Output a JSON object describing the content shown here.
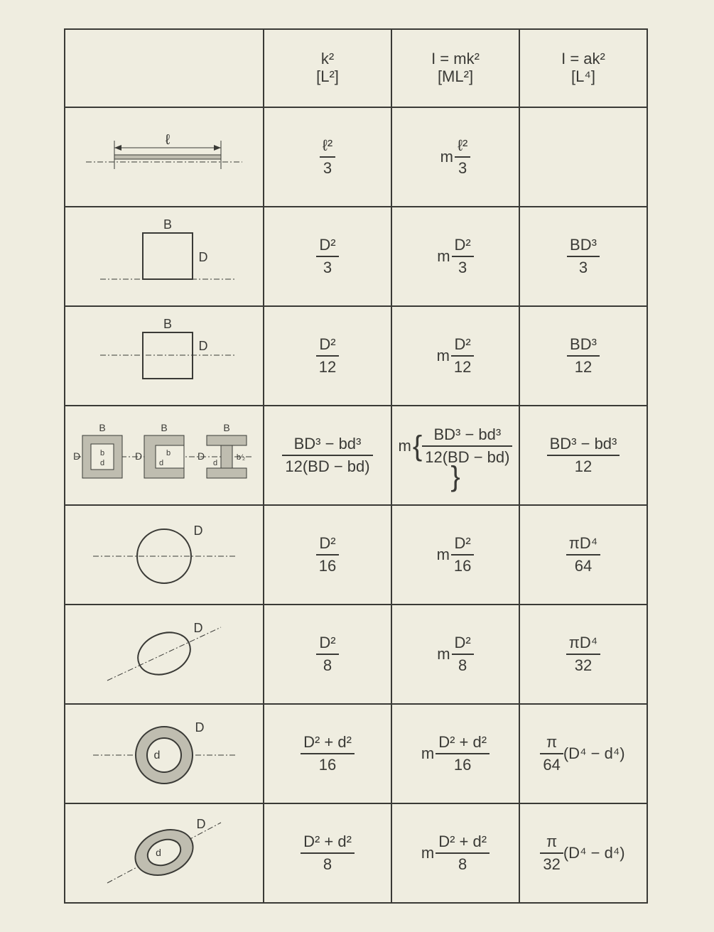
{
  "colors": {
    "bg": "#efede0",
    "ink": "#3a3a36",
    "shade": "#bfbdb0"
  },
  "header": {
    "c1": {
      "top": "k²",
      "bot": "[L²]"
    },
    "c2": {
      "top": "I = mk²",
      "bot": "[ML²]"
    },
    "c3": {
      "top": "I = ak²",
      "bot": "[L⁴]"
    }
  },
  "rows": [
    {
      "shape": "rod",
      "k2": {
        "num": "ℓ²",
        "den": "3"
      },
      "mk2": {
        "pre": "m",
        "num": "ℓ²",
        "den": "3"
      },
      "ak2": null
    },
    {
      "shape": "rect-base",
      "k2": {
        "num": "D²",
        "den": "3"
      },
      "mk2": {
        "pre": "m",
        "num": "D²",
        "den": "3"
      },
      "ak2": {
        "num": "BD³",
        "den": "3"
      }
    },
    {
      "shape": "rect-mid",
      "k2": {
        "num": "D²",
        "den": "12"
      },
      "mk2": {
        "pre": "m",
        "num": "D²",
        "den": "12"
      },
      "ak2": {
        "num": "BD³",
        "den": "12"
      }
    },
    {
      "shape": "sections",
      "k2": {
        "num": "BD³ − bd³",
        "den": "12(BD − bd)"
      },
      "mk2": {
        "pre": "m",
        "brace": true,
        "num": "BD³ − bd³",
        "den": "12(BD − bd)"
      },
      "ak2": {
        "num": "BD³ − bd³",
        "den": "12"
      }
    },
    {
      "shape": "circle",
      "k2": {
        "num": "D²",
        "den": "16"
      },
      "mk2": {
        "pre": "m",
        "num": "D²",
        "den": "16"
      },
      "ak2": {
        "num": "πD⁴",
        "den": "64"
      }
    },
    {
      "shape": "circle-tilt",
      "k2": {
        "num": "D²",
        "den": "8"
      },
      "mk2": {
        "pre": "m",
        "num": "D²",
        "den": "8"
      },
      "ak2": {
        "num": "πD⁴",
        "den": "32"
      }
    },
    {
      "shape": "annulus",
      "k2": {
        "num": "D² + d²",
        "den": "16"
      },
      "mk2": {
        "pre": "m",
        "num": "D² + d²",
        "den": "16"
      },
      "ak2": {
        "pre_frac": {
          "num": "π",
          "den": "64"
        },
        "post": "(D⁴ − d⁴)"
      }
    },
    {
      "shape": "annulus-tilt",
      "k2": {
        "num": "D² + d²",
        "den": "8"
      },
      "mk2": {
        "pre": "m",
        "num": "D² + d²",
        "den": "8"
      },
      "ak2": {
        "pre_frac": {
          "num": "π",
          "den": "32"
        },
        "post": "(D⁴ − d⁴)"
      }
    }
  ],
  "labels": {
    "B": "B",
    "D": "D",
    "d": "d",
    "b": "b",
    "l": "ℓ",
    "bh": "b⁄₂"
  }
}
